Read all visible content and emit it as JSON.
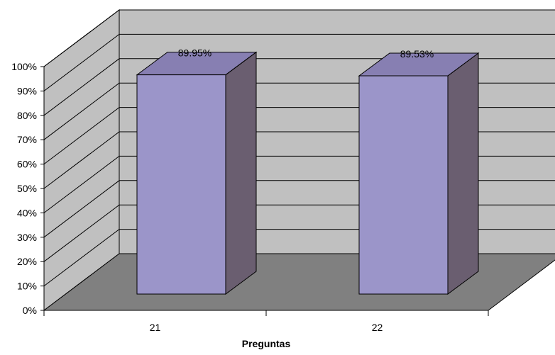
{
  "chart_data": {
    "type": "bar",
    "style": "3d-column",
    "categories": [
      "21",
      "22"
    ],
    "values": [
      89.95,
      89.53
    ],
    "data_labels": [
      "89.95%",
      "89.53%"
    ],
    "ylim": [
      0,
      100
    ],
    "y_ticks": [
      "0%",
      "10%",
      "20%",
      "30%",
      "40%",
      "50%",
      "60%",
      "70%",
      "80%",
      "90%",
      "100%"
    ],
    "xlabel": "Preguntas",
    "ylabel": "",
    "title": "",
    "grid": true,
    "legend": "none",
    "colors": {
      "bar_front": "#9b95c9",
      "bar_top": "#877fb2",
      "bar_side": "#6a5e70",
      "back_wall": "#c0c0c0",
      "side_wall": "#c0c0c0",
      "floor": "#808080",
      "gridline": "#000000"
    }
  }
}
